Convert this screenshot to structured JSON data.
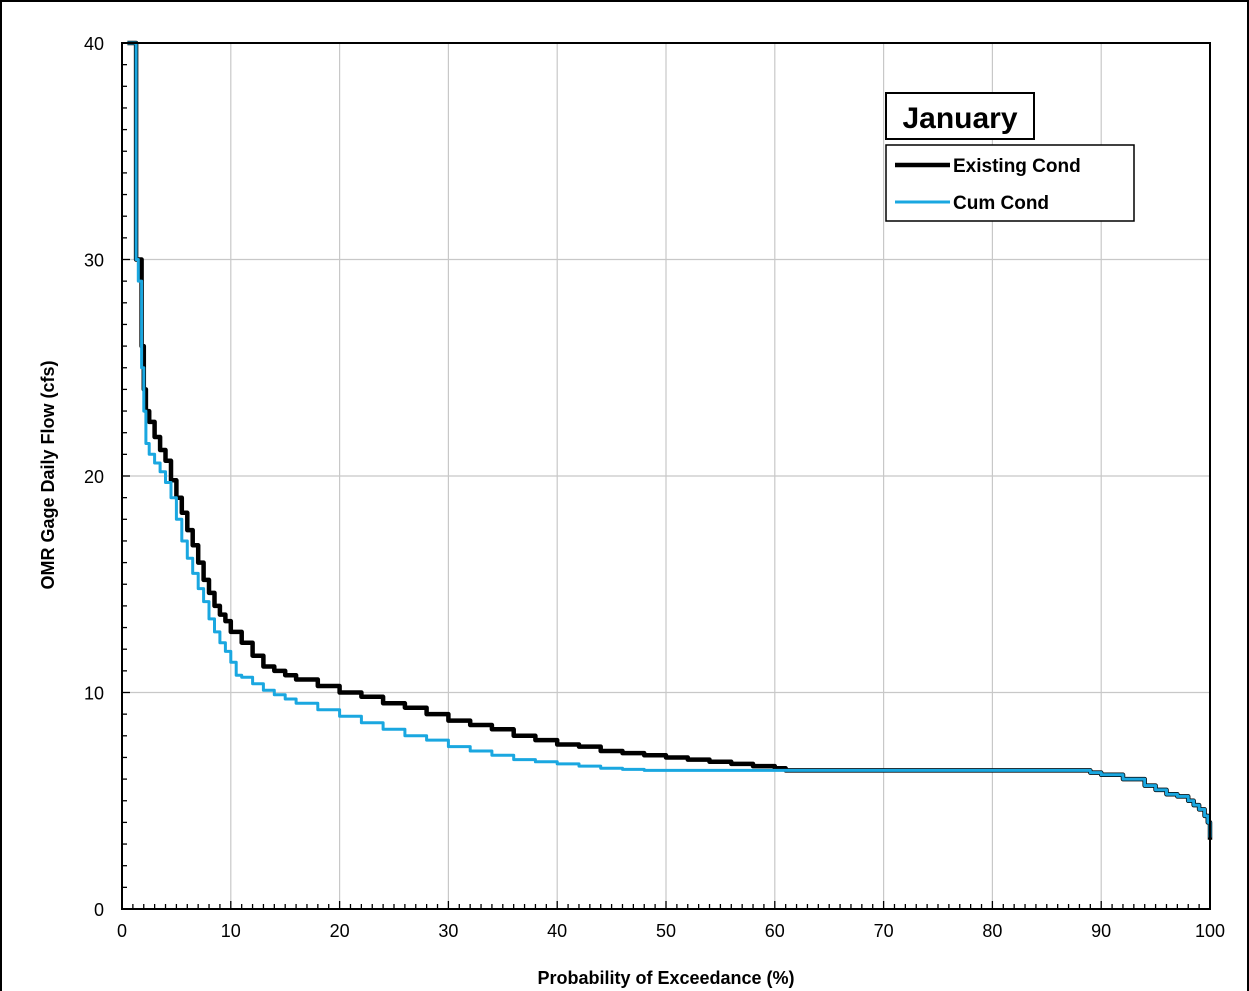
{
  "chart_data": {
    "type": "line",
    "title": "January",
    "xlabel": "Probability of Exceedance (%)",
    "ylabel": "OMR Gage Daily Flow (cfs)",
    "xlim": [
      0,
      100
    ],
    "ylim": [
      0,
      40
    ],
    "xticks": [
      0,
      10,
      20,
      30,
      40,
      50,
      60,
      70,
      80,
      90,
      100
    ],
    "yticks": [
      0,
      10,
      20,
      30,
      40
    ],
    "grid": true,
    "legend_position": "top-right",
    "series": [
      {
        "name": "Existing Cond",
        "color": "#000000",
        "x": [
          0.5,
          1.0,
          1.3,
          1.5,
          1.8,
          2.0,
          2.2,
          2.5,
          3.0,
          3.5,
          4.0,
          4.5,
          5.0,
          5.5,
          6.0,
          6.5,
          7.0,
          7.5,
          8.0,
          8.5,
          9.0,
          9.5,
          10.0,
          11.0,
          12.0,
          13.0,
          14.0,
          15.0,
          16.0,
          18.0,
          20.0,
          22.0,
          24.0,
          26.0,
          28.0,
          30.0,
          32.0,
          34.0,
          36.0,
          38.0,
          40.0,
          42.0,
          44.0,
          46.0,
          48.0,
          50.0,
          52.0,
          54.0,
          56.0,
          58.0,
          60.0,
          61.0,
          65.0,
          70.0,
          75.0,
          80.0,
          85.0,
          88.0,
          89.0,
          90.0,
          92.0,
          94.0,
          95.0,
          96.0,
          97.0,
          98.0,
          98.5,
          99.0,
          99.5,
          99.8,
          100.0
        ],
        "y": [
          40.0,
          40.0,
          30.0,
          30.0,
          26.0,
          24.0,
          23.0,
          22.5,
          21.8,
          21.2,
          20.7,
          19.8,
          19.0,
          18.3,
          17.5,
          16.8,
          16.0,
          15.2,
          14.6,
          14.0,
          13.6,
          13.3,
          12.8,
          12.3,
          11.7,
          11.2,
          11.0,
          10.8,
          10.6,
          10.3,
          10.0,
          9.8,
          9.5,
          9.3,
          9.0,
          8.7,
          8.5,
          8.3,
          8.0,
          7.8,
          7.6,
          7.5,
          7.3,
          7.2,
          7.1,
          7.0,
          6.9,
          6.8,
          6.7,
          6.6,
          6.5,
          6.4,
          6.4,
          6.4,
          6.4,
          6.4,
          6.4,
          6.4,
          6.3,
          6.2,
          6.0,
          5.7,
          5.5,
          5.3,
          5.2,
          5.0,
          4.8,
          4.6,
          4.3,
          4.0,
          3.2
        ]
      },
      {
        "name": "Cum Cond",
        "color": "#1aa7e0",
        "x": [
          0.5,
          1.0,
          1.3,
          1.5,
          1.8,
          2.0,
          2.2,
          2.5,
          3.0,
          3.5,
          4.0,
          4.5,
          5.0,
          5.5,
          6.0,
          6.5,
          7.0,
          7.5,
          8.0,
          8.5,
          9.0,
          9.5,
          10.0,
          10.5,
          11.0,
          12.0,
          13.0,
          14.0,
          15.0,
          16.0,
          18.0,
          20.0,
          22.0,
          24.0,
          26.0,
          28.0,
          30.0,
          32.0,
          34.0,
          36.0,
          38.0,
          40.0,
          42.0,
          44.0,
          46.0,
          48.0,
          50.0,
          55.0,
          60.0,
          65.0,
          70.0,
          75.0,
          80.0,
          85.0,
          88.0,
          89.0,
          90.0,
          92.0,
          94.0,
          95.0,
          96.0,
          97.0,
          98.0,
          98.5,
          99.0,
          99.5,
          99.8,
          100.0
        ],
        "y": [
          40.0,
          40.0,
          30.0,
          29.0,
          25.0,
          23.0,
          21.5,
          21.0,
          20.6,
          20.2,
          19.7,
          19.0,
          18.0,
          17.0,
          16.2,
          15.5,
          14.8,
          14.2,
          13.4,
          12.8,
          12.3,
          11.9,
          11.4,
          10.8,
          10.7,
          10.4,
          10.1,
          9.9,
          9.7,
          9.5,
          9.2,
          8.9,
          8.6,
          8.3,
          8.0,
          7.8,
          7.5,
          7.3,
          7.1,
          6.9,
          6.8,
          6.7,
          6.6,
          6.5,
          6.45,
          6.4,
          6.4,
          6.4,
          6.4,
          6.4,
          6.4,
          6.4,
          6.4,
          6.4,
          6.4,
          6.3,
          6.2,
          6.0,
          5.7,
          5.5,
          5.3,
          5.2,
          5.0,
          4.8,
          4.6,
          4.3,
          4.0,
          3.3
        ]
      }
    ]
  }
}
